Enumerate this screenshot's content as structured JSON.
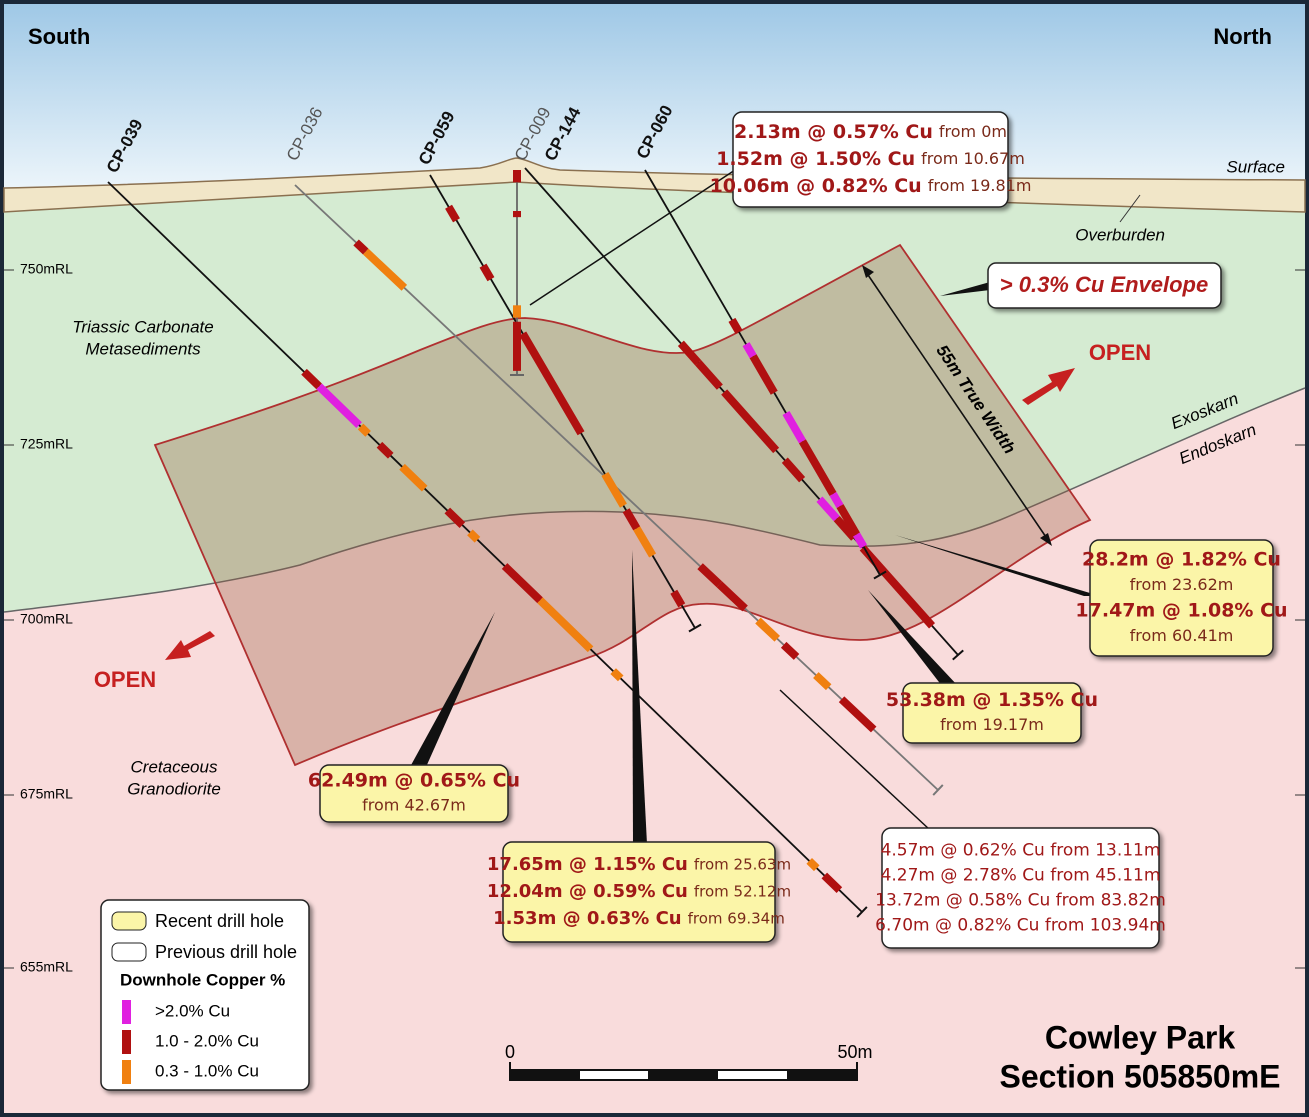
{
  "compass": {
    "south": "South",
    "north": "North"
  },
  "labels": {
    "surface": "Surface",
    "overburden": "Overburden",
    "exoskarn": "Exoskarn",
    "endoskarn": "Endoskarn",
    "metasediments": [
      "Triassic Carbonate",
      "Metasediments"
    ],
    "granodiorite": [
      "Cretaceous",
      "Granodiorite"
    ]
  },
  "elevations": [
    "750mRL",
    "725mRL",
    "700mRL",
    "675mRL",
    "655mRL"
  ],
  "holes": [
    "CP-039",
    "CP-036",
    "CP-059",
    "CP-009",
    "CP-144",
    "CP-060"
  ],
  "envelope": {
    "label": "> 0.3% Cu Envelope",
    "true_width": "55m True Width",
    "open": [
      "OPEN",
      "OPEN"
    ]
  },
  "callouts": [
    {
      "lines": [
        [
          "2.13m @ 0.57% Cu",
          "from 0m"
        ],
        [
          "1.52m @ 1.50% Cu",
          "from 10.67m"
        ],
        [
          "10.06m @ 0.82% Cu",
          "from 19.81m"
        ]
      ]
    },
    {
      "lines": [
        [
          "28.2m @ 1.82% Cu"
        ],
        [
          "from 23.62m"
        ],
        [
          "17.47m @ 1.08% Cu"
        ],
        [
          "from 60.41m"
        ]
      ]
    },
    {
      "lines": [
        [
          "53.38m @ 1.35% Cu"
        ],
        [
          "from 19.17m"
        ]
      ]
    },
    {
      "lines": [
        [
          "62.49m @ 0.65% Cu"
        ],
        [
          "from 42.67m"
        ]
      ]
    },
    {
      "lines": [
        [
          "17.65m @ 1.15% Cu",
          "from 25.63m"
        ],
        [
          "12.04m @ 0.59% Cu",
          "from 52.12m"
        ],
        [
          "1.53m @ 0.63% Cu",
          "from 69.34m"
        ]
      ]
    },
    {
      "lines": [
        [
          "4.57m @ 0.62% Cu from 13.11m"
        ],
        [
          "4.27m @ 2.78% Cu from 45.11m"
        ],
        [
          "13.72m @ 0.58% Cu from 83.82m"
        ],
        [
          "6.70m @ 0.82% Cu from 103.94m"
        ]
      ]
    }
  ],
  "legend": {
    "recent": "Recent drill hole",
    "previous": "Previous drill hole",
    "heading": "Downhole Copper %",
    "grades": [
      ">2.0% Cu",
      "1.0 - 2.0% Cu",
      "0.3 - 1.0% Cu"
    ]
  },
  "scale": {
    "start": "0",
    "end": "50m"
  },
  "title": [
    "Cowley Park",
    "Section 505850mE"
  ]
}
